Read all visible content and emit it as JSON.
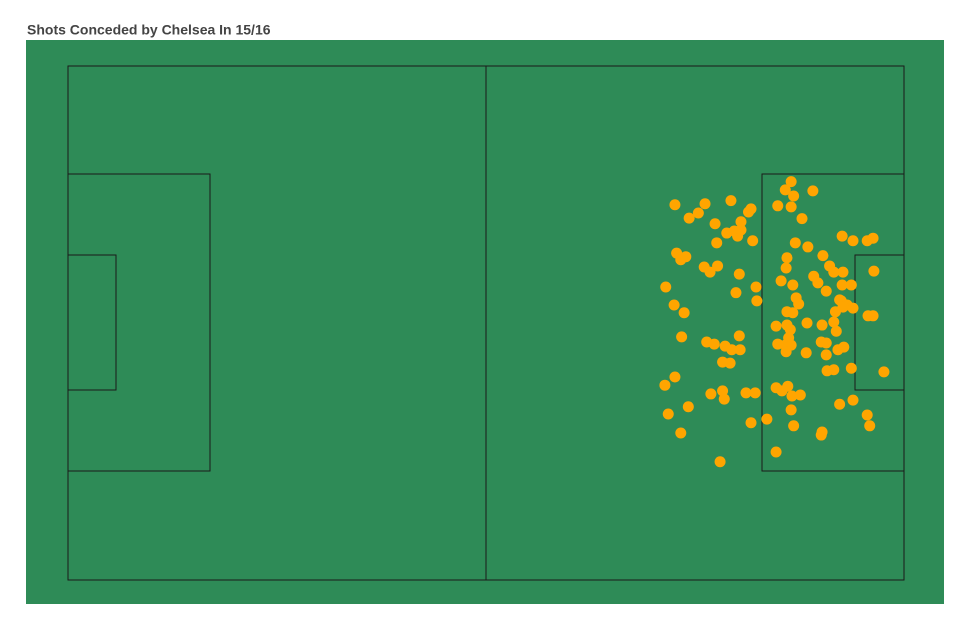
{
  "chart_data": {
    "type": "scatter",
    "title": "Shots Conceded by Chelsea In 15/16",
    "color": "#ffa500",
    "xlim": [
      0,
      100
    ],
    "ylim": [
      0,
      100
    ],
    "x": [
      72.6,
      74.3,
      75.4,
      76.2,
      77.4,
      79.3,
      80.5,
      81.7,
      81.4,
      78.8,
      80.1,
      79.7,
      80.5,
      81.9,
      77.6,
      72.8,
      73.3,
      73.9,
      76.1,
      76.8,
      77.7,
      80.3,
      71.5,
      72.5,
      73.7,
      73.4,
      76.4,
      77.3,
      78.6,
      79.4,
      80.4,
      80.3,
      78.3,
      79.2,
      82.3,
      79.9,
      82.4,
      71.4,
      72.6,
      71.8,
      74.2,
      73.3,
      76.9,
      78.3,
      78.5,
      81.1,
      82.2,
      81.7,
      78.0,
      84.9,
      86.5,
      85.8,
      86.5,
      86.8,
      89.1,
      87.8,
      87.0,
      88.5,
      86.0,
      85.9,
      85.3,
      86.7,
      87.1,
      87.4,
      86.0,
      86.7,
      84.7,
      86.0,
      86.4,
      86.2,
      85.8,
      86.5,
      84.9,
      85.9,
      88.4,
      90.2,
      91.6,
      91.8,
      88.3,
      90.1,
      90.7,
      90.7,
      92.1,
      92.8,
      91.9,
      90.3,
      91.1,
      92.6,
      93.9,
      95.6,
      96.3,
      96.4,
      89.2,
      89.7,
      90.7,
      91.6,
      92.7,
      92.6,
      93.7,
      92.5,
      93.2,
      93.9,
      95.7,
      96.3,
      93.7,
      91.6,
      90.8,
      97.6,
      84.7,
      85.4,
      86.1,
      86.6,
      87.6,
      86.5,
      83.6,
      86.8,
      90.2,
      90.1,
      92.3,
      93.9,
      95.6,
      95.9,
      84.7,
      92.3,
      92.7
    ],
    "values": [
      73.0,
      70.4,
      71.4,
      73.2,
      69.3,
      73.8,
      69.7,
      72.2,
      71.6,
      67.5,
      66.9,
      67.9,
      68.1,
      66.0,
      65.6,
      63.6,
      62.3,
      62.9,
      60.9,
      59.9,
      61.1,
      59.5,
      57.0,
      53.5,
      52.0,
      47.3,
      46.3,
      45.9,
      45.5,
      44.8,
      44.8,
      47.5,
      42.4,
      42.2,
      57.0,
      55.9,
      54.3,
      37.9,
      39.5,
      32.3,
      33.7,
      28.6,
      36.2,
      36.8,
      35.2,
      36.4,
      36.4,
      30.6,
      23.0,
      72.8,
      72.6,
      75.9,
      77.5,
      74.7,
      75.7,
      70.3,
      65.6,
      64.8,
      62.7,
      60.7,
      58.2,
      57.4,
      54.9,
      53.7,
      52.2,
      52.0,
      49.4,
      49.6,
      48.7,
      47.1,
      45.7,
      45.7,
      45.9,
      44.4,
      50.0,
      49.6,
      50.2,
      52.2,
      44.2,
      46.3,
      46.1,
      43.8,
      44.8,
      45.3,
      48.4,
      63.1,
      61.1,
      66.9,
      66.0,
      66.0,
      66.5,
      60.1,
      59.1,
      57.8,
      56.2,
      59.9,
      59.9,
      57.4,
      57.4,
      54.3,
      53.5,
      52.9,
      51.4,
      51.4,
      41.2,
      40.9,
      40.7,
      40.5,
      37.4,
      36.8,
      37.7,
      35.8,
      36.0,
      33.1,
      31.3,
      30.0,
      28.8,
      28.2,
      34.2,
      35.0,
      32.1,
      30.0,
      24.9,
      54.5,
      53.1
    ]
  }
}
